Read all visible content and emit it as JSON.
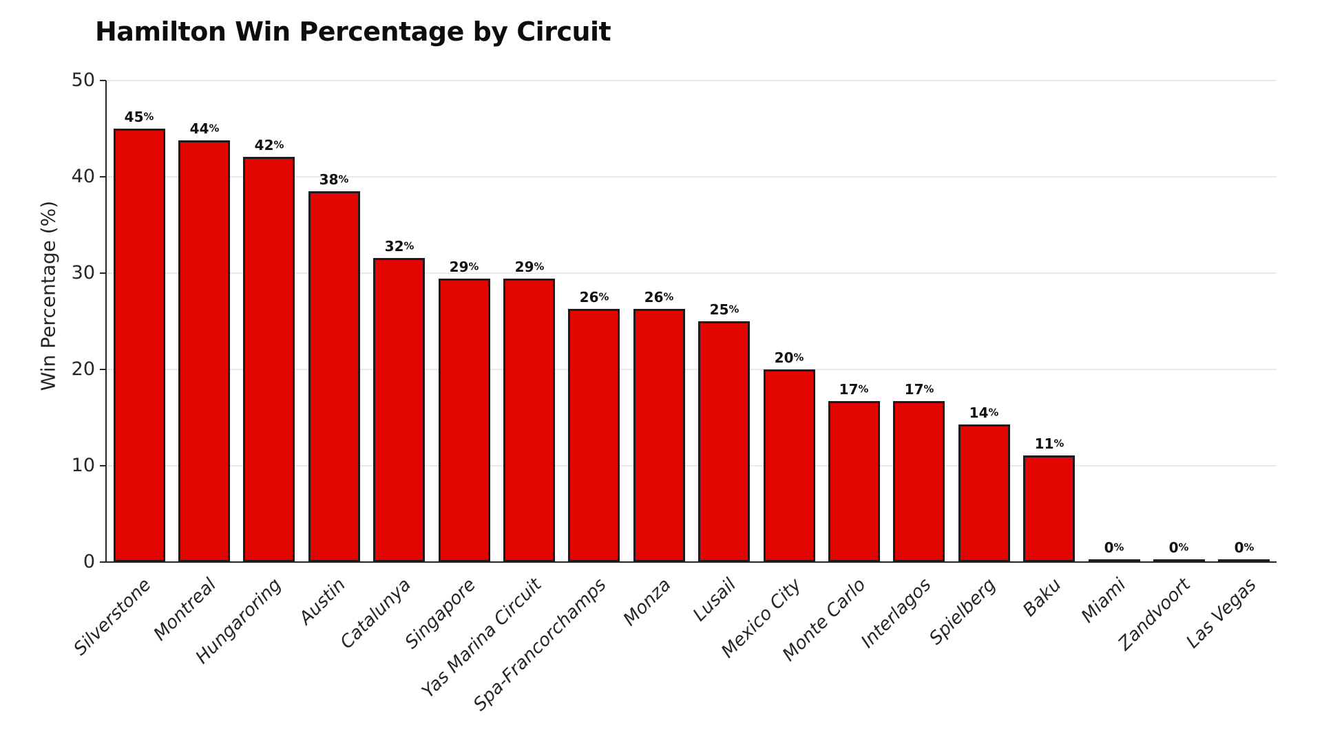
{
  "figure": {
    "title": "Hamilton Win Percentage by Circuit"
  },
  "chart_data": {
    "type": "bar",
    "title": "Hamilton Win Percentage by Circuit",
    "xlabel": "",
    "ylabel": "Win Percentage (%)",
    "ylim": [
      0,
      50
    ],
    "yticks": [
      0,
      10,
      20,
      30,
      40,
      50
    ],
    "grid": true,
    "legend": false,
    "background_color": "#FFFFFF",
    "bar_color": "#E10600",
    "bar_edge_color": "#1F1A1F",
    "categories": [
      "Silverstone",
      "Montreal",
      "Hungaroring",
      "Austin",
      "Catalunya",
      "Singapore",
      "Yas Marina Circuit",
      "Spa-Francorchamps",
      "Monza",
      "Lusail",
      "Mexico City",
      "Monte Carlo",
      "Interlagos",
      "Spielberg",
      "Baku",
      "Miami",
      "Zandvoort",
      "Las Vegas"
    ],
    "values": [
      45.0,
      43.8,
      42.1,
      38.5,
      31.6,
      29.4,
      29.4,
      26.3,
      26.3,
      25.0,
      20.0,
      16.7,
      16.7,
      14.3,
      11.1,
      0.0,
      0.0,
      0.0
    ],
    "bar_labels": [
      "45%",
      "44%",
      "42%",
      "38%",
      "32%",
      "29%",
      "29%",
      "26%",
      "26%",
      "25%",
      "20%",
      "17%",
      "17%",
      "14%",
      "11%",
      "0%",
      "0%",
      "0%"
    ]
  }
}
